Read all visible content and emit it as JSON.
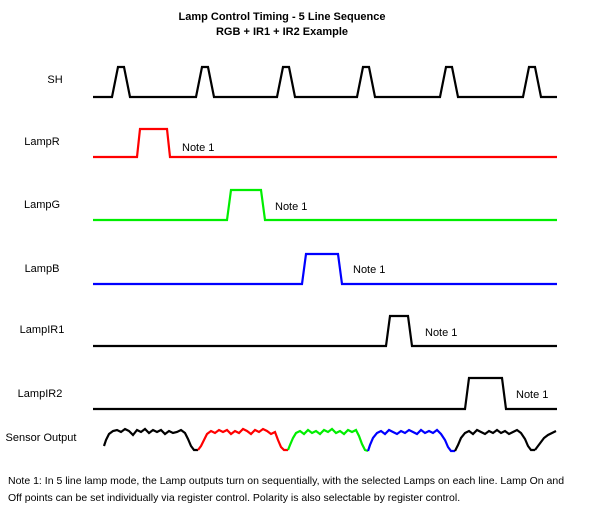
{
  "title": {
    "line1": "Lamp Control Timing - 5 Line Sequence",
    "line2": "RGB + IR1 + IR2 Example"
  },
  "signals": [
    {
      "id": "sh",
      "label": "SH",
      "color": "#000000"
    },
    {
      "id": "lampr",
      "label": "LampR",
      "color": "#ff0000",
      "note": "Note 1"
    },
    {
      "id": "lampg",
      "label": "LampG",
      "color": "#00ee00",
      "note": "Note 1"
    },
    {
      "id": "lampb",
      "label": "LampB",
      "color": "#0000ff",
      "note": "Note 1"
    },
    {
      "id": "lampir1",
      "label": "LampIR1",
      "color": "#000000",
      "note": "Note 1"
    },
    {
      "id": "lampir2",
      "label": "LampIR2",
      "color": "#000000",
      "note": "Note 1"
    }
  ],
  "sensor": {
    "label": "Sensor Output",
    "colors": [
      "#000000",
      "#ff0000",
      "#00ee00",
      "#0000ff",
      "#000000",
      "#000000"
    ]
  },
  "footnote": "Note 1: In 5 line lamp mode, the Lamp outputs turn on sequentially, with the selected Lamps on each line.  Lamp On and Off points can be set individually via register control. Polarity is also selectable by register control."
}
